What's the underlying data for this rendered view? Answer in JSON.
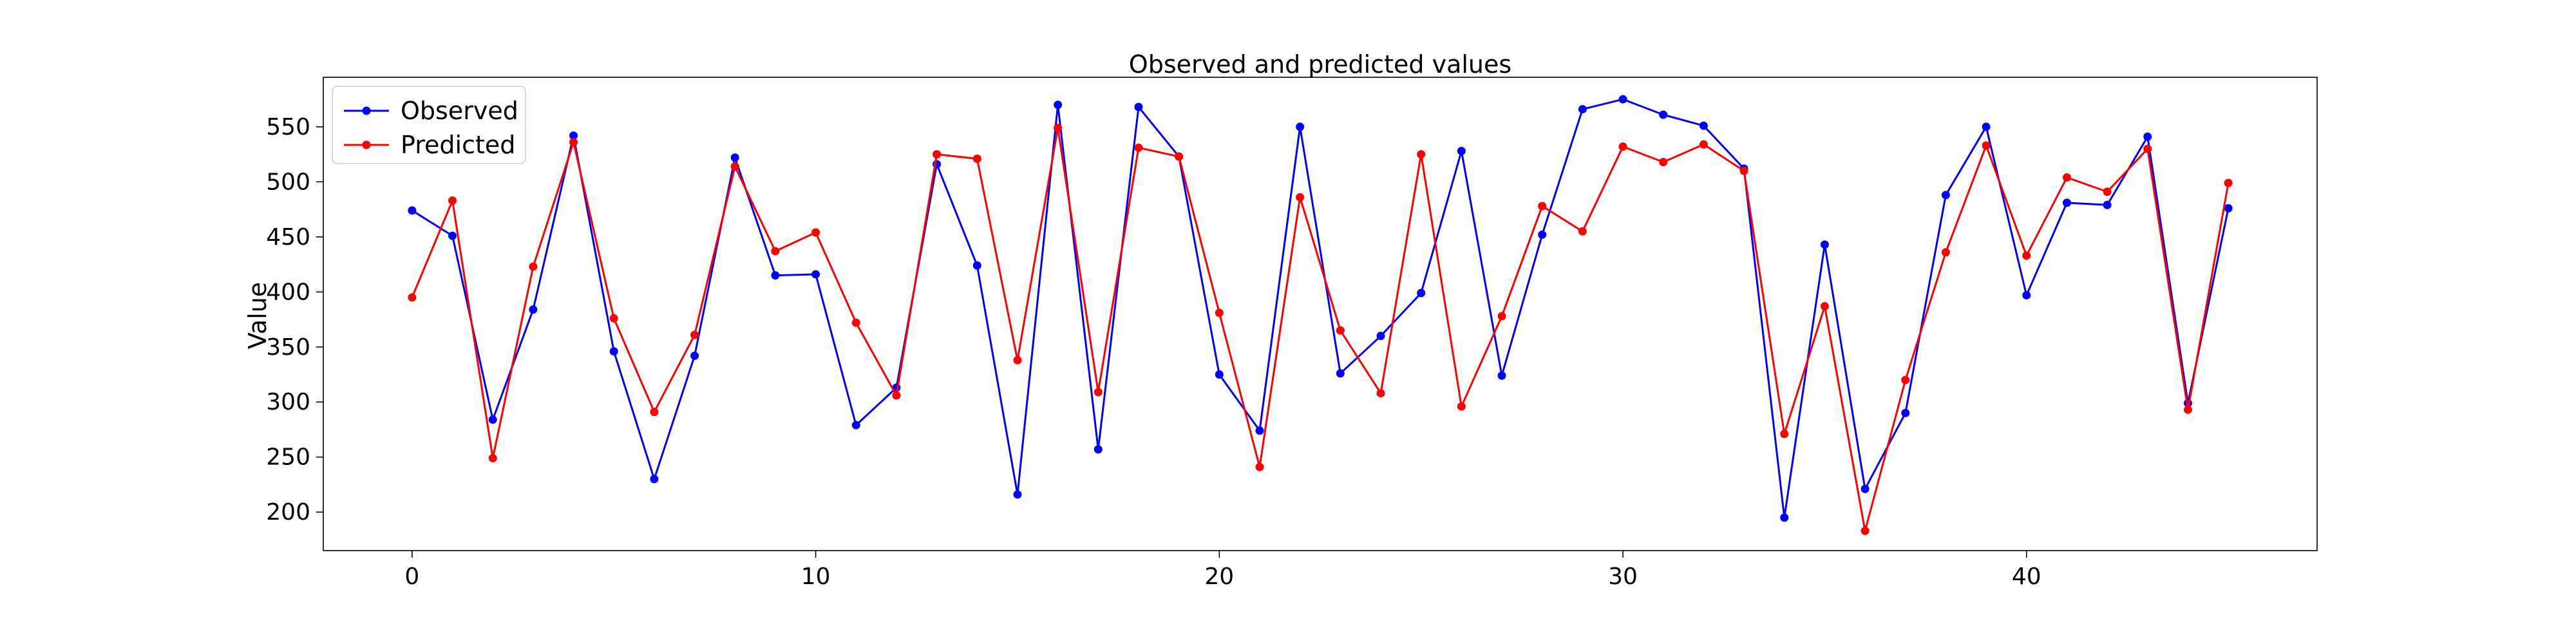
{
  "chart_data": {
    "type": "line",
    "title": "Observed and predicted values",
    "xlabel": "",
    "ylabel": "Value",
    "xlim": [
      -2.2,
      47.2
    ],
    "ylim": [
      165,
      595
    ],
    "xticks": [
      0,
      10,
      20,
      30,
      40
    ],
    "yticks": [
      200,
      250,
      300,
      350,
      400,
      450,
      500,
      550
    ],
    "grid": false,
    "legend_position": "top-left",
    "x": [
      0,
      1,
      2,
      3,
      4,
      5,
      6,
      7,
      8,
      9,
      10,
      11,
      12,
      13,
      14,
      15,
      16,
      17,
      18,
      19,
      20,
      21,
      22,
      23,
      24,
      25,
      26,
      27,
      28,
      29,
      30,
      31,
      32,
      33,
      34,
      35,
      36,
      37,
      38,
      39,
      40,
      41,
      42,
      43,
      44,
      45
    ],
    "series": [
      {
        "name": "Observed",
        "color": "#0000ff",
        "values": [
          474,
          451,
          284,
          384,
          542,
          346,
          230,
          342,
          522,
          415,
          416,
          279,
          313,
          516,
          424,
          216,
          570,
          257,
          568,
          523,
          325,
          274,
          550,
          326,
          360,
          399,
          528,
          324,
          452,
          566,
          575,
          561,
          551,
          512,
          195,
          443,
          221,
          290,
          488,
          550,
          397,
          481,
          479,
          541,
          299,
          476
        ]
      },
      {
        "name": "Predicted",
        "color": "#ff0000",
        "values": [
          395,
          483,
          249,
          423,
          536,
          376,
          291,
          361,
          514,
          437,
          454,
          372,
          306,
          525,
          521,
          338,
          549,
          309,
          531,
          523,
          381,
          241,
          486,
          365,
          308,
          525,
          296,
          378,
          478,
          455,
          532,
          518,
          534,
          510,
          271,
          387,
          183,
          320,
          436,
          533,
          433,
          504,
          491,
          530,
          293,
          499
        ]
      }
    ]
  }
}
